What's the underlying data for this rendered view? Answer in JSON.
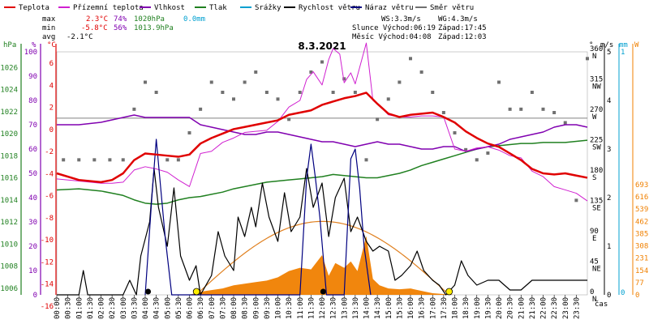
{
  "legend": [
    {
      "label": "Teplota",
      "color": "#e00000"
    },
    {
      "label": "Přízemní teplota",
      "color": "#d020d0"
    },
    {
      "label": "Vlhkost",
      "color": "#8000b0"
    },
    {
      "label": "Tlak",
      "color": "#208020"
    },
    {
      "label": "Srážky",
      "color": "#00a0d0"
    },
    {
      "label": "Rychlost větru",
      "color": "#000000"
    },
    {
      "label": "Náraz větru",
      "color": "#000080"
    },
    {
      "label": "Směr větru",
      "color": "#707070"
    }
  ],
  "stats": {
    "max_label": "max",
    "max_temp": "2.3°C",
    "max_hum": "74%",
    "max_press": "1020hPa",
    "max_rain": "0.0mm",
    "min_label": "min",
    "min_temp": "-5.8°C",
    "min_hum": "56%",
    "min_press": "1013.9hPa",
    "avg_label": "avg",
    "avg_temp": "-2.1°C"
  },
  "wind_info": {
    "ws": "WS:3.3m/s",
    "wg": "WG:4.3m/s",
    "sun": "Slunce Východ:06:19",
    "sunset": "Západ:17:45",
    "moon": "Měsíc  Východ:04:08",
    "moonset": "Západ:12:03"
  },
  "title": "8.3.2021",
  "axis_units": {
    "hpa": "hPa",
    "pct": "%",
    "degc": "°C",
    "deg": "°",
    "ms": "m/s",
    "mm": "mm",
    "w": "W",
    "cas": "čas"
  },
  "colors": {
    "temp": "#e00000",
    "ground": "#d020d0",
    "hum": "#8000b0",
    "press": "#208020",
    "rain": "#00a0d0",
    "wind": "#000000",
    "gust": "#000080",
    "dir": "#707070",
    "solar": "#f08000",
    "sun_curve": "#e08020"
  },
  "chart_data": {
    "type": "line",
    "title": "8.3.2021",
    "x_tick_labels": [
      "00:00",
      "00:30",
      "01:00",
      "01:30",
      "02:00",
      "02:30",
      "03:00",
      "03:30",
      "04:00",
      "04:30",
      "05:00",
      "05:30",
      "06:00",
      "06:30",
      "07:00",
      "07:30",
      "08:00",
      "08:30",
      "09:00",
      "09:30",
      "10:00",
      "10:30",
      "11:00",
      "11:30",
      "12:00",
      "12:30",
      "13:00",
      "13:30",
      "14:00",
      "14:30",
      "15:00",
      "15:30",
      "16:00",
      "16:30",
      "17:00",
      "17:30",
      "18:00",
      "18:30",
      "19:00",
      "19:30",
      "20:00",
      "20:30",
      "21:00",
      "21:30",
      "22:00",
      "22:30",
      "23:00",
      "23:30"
    ],
    "axes": {
      "hpa": {
        "ticks": [
          "1026",
          "1024",
          "1022",
          "1020",
          "1018",
          "1016",
          "1014",
          "1012",
          "1010",
          "1008",
          "1006"
        ],
        "range": [
          1006,
          1028
        ]
      },
      "pct": {
        "ticks": [
          "100",
          "90",
          "80",
          "70",
          "60",
          "50",
          "40",
          "30",
          "20",
          "10",
          "0"
        ],
        "range": [
          0,
          100
        ]
      },
      "degc": {
        "ticks": [
          "6",
          "4",
          "2",
          "0",
          "-2",
          "-4",
          "-6",
          "-8",
          "-10",
          "-12",
          "-14",
          "-16"
        ],
        "range": [
          -16,
          6
        ]
      },
      "dir": {
        "ticks": [
          "360 N",
          "315 NW",
          "270 W",
          "225 SW",
          "180 S",
          "135 SE",
          "90 E",
          "45 NE",
          "0 N"
        ],
        "range": [
          0,
          360
        ]
      },
      "ms": {
        "ticks": [
          "5",
          "4",
          "3",
          "2",
          "1",
          "0"
        ],
        "range": [
          0,
          5
        ]
      },
      "mm": {
        "ticks": [
          "1",
          "0"
        ],
        "range": [
          0,
          1
        ]
      },
      "w": {
        "ticks": [
          "693",
          "616",
          "539",
          "462",
          "385",
          "308",
          "231",
          "154",
          "77",
          "0"
        ],
        "range": [
          0,
          693
        ]
      }
    },
    "series": [
      {
        "name": "Teplota",
        "axis": "degc",
        "x": [
          0,
          1,
          2,
          2.5,
          3,
          3.5,
          4,
          4.5,
          5,
          5.5,
          6,
          6.5,
          7,
          7.5,
          8,
          8.5,
          9,
          9.5,
          10,
          10.5,
          11,
          11.5,
          12,
          12.5,
          13,
          13.5,
          14,
          14.5,
          15,
          15.5,
          16,
          16.5,
          17,
          17.5,
          18,
          18.5,
          19,
          19.5,
          20,
          20.5,
          21,
          21.5,
          22,
          22.5,
          23,
          23.5,
          24
        ],
        "values": [
          -5,
          -5.6,
          -5.8,
          -5.6,
          -5,
          -3.8,
          -3.2,
          -3.3,
          -3.4,
          -3.5,
          -3.3,
          -2.3,
          -1.8,
          -1.4,
          -1,
          -0.8,
          -0.6,
          -0.4,
          -0.2,
          0.3,
          0.5,
          0.7,
          1.2,
          1.5,
          1.8,
          2,
          2.3,
          1.3,
          0.4,
          0.1,
          0.3,
          0.4,
          0.5,
          0.1,
          -0.4,
          -1.2,
          -1.8,
          -2.3,
          -2.6,
          -3.2,
          -3.8,
          -4.6,
          -5,
          -5.1,
          -5,
          -5.2,
          -5.4
        ]
      },
      {
        "name": "Přízemní teplota",
        "axis": "degc",
        "x": [
          0,
          1,
          2,
          2.5,
          3,
          3.5,
          4,
          4.5,
          5,
          5.5,
          6,
          6.5,
          7,
          7.5,
          8,
          8.5,
          9,
          9.5,
          10,
          10.5,
          11,
          11.3,
          11.6,
          12,
          12.3,
          12.5,
          12.8,
          13,
          13.3,
          13.5,
          14,
          14.3,
          14.6,
          15,
          15.5,
          16,
          16.5,
          17,
          17.5,
          18,
          18.5,
          19,
          19.5,
          20,
          20.5,
          21,
          21.5,
          22,
          22.5,
          23,
          23.5,
          24
        ],
        "values": [
          -5.5,
          -5.7,
          -5.9,
          -5.9,
          -5.8,
          -4.7,
          -4.4,
          -4.6,
          -4.9,
          -5.6,
          -6.2,
          -3.2,
          -3,
          -2.2,
          -1.8,
          -1.3,
          -1.2,
          -1.1,
          -0.3,
          1,
          1.6,
          3.5,
          4.2,
          3,
          5.3,
          6.3,
          5.8,
          3.2,
          4.1,
          3.1,
          6.8,
          1.6,
          1.1,
          0.3,
          0.1,
          0.1,
          0.2,
          0.2,
          0.1,
          -2.8,
          -3,
          -2.7,
          -2.6,
          -2.9,
          -3.4,
          -3.6,
          -4.8,
          -5.3,
          -6.2,
          -6.5,
          -6.8,
          -7.5
        ]
      },
      {
        "name": "Vlhkost",
        "axis": "pct",
        "x": [
          0,
          1,
          2,
          2.5,
          3,
          3.5,
          4,
          4.5,
          5,
          5.5,
          6,
          6.5,
          7,
          7.5,
          8,
          8.5,
          9,
          9.5,
          10,
          10.5,
          11,
          11.5,
          12,
          12.5,
          13,
          13.5,
          14,
          14.5,
          15,
          15.5,
          16,
          16.5,
          17,
          17.5,
          18,
          18.5,
          19,
          19.5,
          20,
          20.5,
          21,
          21.5,
          22,
          22.5,
          23,
          23.5,
          24
        ],
        "values": [
          70,
          70,
          71,
          72,
          73,
          74,
          73,
          73,
          73,
          73,
          73,
          70,
          69,
          68,
          67,
          66,
          66,
          67,
          67,
          66,
          65,
          64,
          63,
          63,
          62,
          61,
          62,
          63,
          62,
          62,
          61,
          60,
          60,
          61,
          61,
          59,
          60,
          61,
          62,
          64,
          65,
          66,
          67,
          69,
          70,
          70,
          69
        ]
      },
      {
        "name": "Tlak",
        "axis": "hpa",
        "x": [
          0,
          1,
          2,
          2.5,
          3,
          3.5,
          4,
          4.5,
          5,
          5.5,
          6,
          6.5,
          7,
          7.5,
          8,
          8.5,
          9,
          9.5,
          10,
          10.5,
          11,
          11.5,
          12,
          12.5,
          13,
          13.5,
          14,
          14.5,
          15,
          15.5,
          16,
          16.5,
          17,
          17.5,
          18,
          18.5,
          19,
          19.5,
          20,
          20.5,
          21,
          21.5,
          22,
          22.5,
          23,
          23.5,
          24
        ],
        "values": [
          1015.5,
          1015.6,
          1015.4,
          1015.2,
          1015.0,
          1014.6,
          1014.3,
          1014.2,
          1014.3,
          1014.6,
          1014.8,
          1014.9,
          1015.1,
          1015.3,
          1015.6,
          1015.8,
          1016.0,
          1016.2,
          1016.3,
          1016.4,
          1016.5,
          1016.6,
          1016.7,
          1016.9,
          1016.8,
          1016.7,
          1016.6,
          1016.6,
          1016.8,
          1017.0,
          1017.3,
          1017.7,
          1018.0,
          1018.3,
          1018.6,
          1018.9,
          1019.2,
          1019.4,
          1019.5,
          1019.6,
          1019.7,
          1019.7,
          1019.8,
          1019.8,
          1019.8,
          1019.9,
          1020.0
        ]
      },
      {
        "name": "Rychlost větru",
        "axis": "ms",
        "x": [
          0,
          0.5,
          1,
          1.2,
          1.4,
          1.6,
          2,
          2.5,
          3,
          3.3,
          3.6,
          3.8,
          4.2,
          4.4,
          4.6,
          5,
          5.3,
          5.6,
          6,
          6.3,
          6.5,
          7,
          7.3,
          7.6,
          8,
          8.2,
          8.5,
          8.8,
          9,
          9.3,
          9.6,
          10,
          10.3,
          10.6,
          11,
          11.3,
          11.6,
          12,
          12.3,
          12.6,
          13,
          13.3,
          13.6,
          14,
          14.3,
          14.6,
          15,
          15.3,
          15.6,
          16,
          16.3,
          16.6,
          17,
          17.3,
          17.6,
          18,
          18.3,
          18.6,
          19,
          19.5,
          20,
          20.5,
          21,
          21.5,
          22,
          22.5,
          23,
          23.5,
          24
        ],
        "values": [
          0,
          0,
          0,
          0.5,
          0,
          0,
          0,
          0,
          0,
          0.3,
          0,
          0.8,
          1.5,
          2.6,
          1.8,
          1.0,
          2.2,
          0.8,
          0.3,
          0.6,
          0,
          0.4,
          1.3,
          0.8,
          0.5,
          1.6,
          1.2,
          1.8,
          1.4,
          2.3,
          1.6,
          1.1,
          2.1,
          1.3,
          1.6,
          2.6,
          1.8,
          2.3,
          1.2,
          2.0,
          2.4,
          1.3,
          1.6,
          1.1,
          0.9,
          1.0,
          0.9,
          0.3,
          0.4,
          0.6,
          0.9,
          0.5,
          0.3,
          0.2,
          0,
          0.2,
          0.7,
          0.4,
          0.2,
          0.3,
          0.3,
          0.1,
          0.1,
          0.3,
          0.3,
          0.3,
          0.3,
          0.3,
          0.3
        ]
      },
      {
        "name": "Náraz větru",
        "axis": "ms",
        "x": [
          4,
          4.3,
          4.5,
          4.7,
          4.9,
          5.2,
          11,
          11.3,
          11.5,
          11.7,
          11.9,
          12.2,
          13,
          13.3,
          13.5,
          13.7,
          13.9,
          14.2
        ],
        "values": [
          0,
          2.0,
          3.2,
          2.2,
          1.2,
          0,
          0,
          2.4,
          3.1,
          2.4,
          1.6,
          0,
          0,
          2.8,
          3.0,
          2.2,
          1.0,
          0
        ]
      },
      {
        "name": "Solar",
        "axis": "w",
        "x": [
          6,
          6.5,
          7,
          7.5,
          8,
          8.5,
          9,
          9.5,
          10,
          10.5,
          11,
          11.5,
          12,
          12.3,
          12.6,
          13,
          13.3,
          13.6,
          14,
          14.3,
          14.6,
          15,
          15.5,
          16,
          16.5,
          17,
          17.5,
          18
        ],
        "values": [
          0,
          20,
          30,
          40,
          60,
          70,
          80,
          90,
          110,
          150,
          170,
          160,
          250,
          120,
          200,
          170,
          210,
          150,
          370,
          100,
          60,
          40,
          35,
          40,
          25,
          10,
          5,
          0
        ]
      }
    ],
    "wind_direction_points": [
      {
        "x": 0.3,
        "y": 200
      },
      {
        "x": 1.0,
        "y": 200
      },
      {
        "x": 1.7,
        "y": 200
      },
      {
        "x": 2.4,
        "y": 200
      },
      {
        "x": 3.0,
        "y": 200
      },
      {
        "x": 3.5,
        "y": 275
      },
      {
        "x": 4.0,
        "y": 315
      },
      {
        "x": 4.5,
        "y": 300
      },
      {
        "x": 5.0,
        "y": 200
      },
      {
        "x": 5.5,
        "y": 200
      },
      {
        "x": 6.0,
        "y": 240
      },
      {
        "x": 6.5,
        "y": 275
      },
      {
        "x": 7.0,
        "y": 315
      },
      {
        "x": 7.5,
        "y": 300
      },
      {
        "x": 8.0,
        "y": 290
      },
      {
        "x": 8.5,
        "y": 315
      },
      {
        "x": 9.0,
        "y": 330
      },
      {
        "x": 9.5,
        "y": 300
      },
      {
        "x": 10.0,
        "y": 290
      },
      {
        "x": 10.5,
        "y": 260
      },
      {
        "x": 11.0,
        "y": 300
      },
      {
        "x": 11.5,
        "y": 330
      },
      {
        "x": 12.0,
        "y": 345
      },
      {
        "x": 12.5,
        "y": 300
      },
      {
        "x": 13.0,
        "y": 320
      },
      {
        "x": 13.5,
        "y": 300
      },
      {
        "x": 14.0,
        "y": 200
      },
      {
        "x": 14.5,
        "y": 260
      },
      {
        "x": 15.0,
        "y": 290
      },
      {
        "x": 15.5,
        "y": 315
      },
      {
        "x": 16.0,
        "y": 350
      },
      {
        "x": 16.5,
        "y": 330
      },
      {
        "x": 17.0,
        "y": 300
      },
      {
        "x": 17.5,
        "y": 270
      },
      {
        "x": 18.0,
        "y": 240
      },
      {
        "x": 18.5,
        "y": 215
      },
      {
        "x": 19.0,
        "y": 200
      },
      {
        "x": 19.5,
        "y": 210
      },
      {
        "x": 20.0,
        "y": 315
      },
      {
        "x": 20.5,
        "y": 275
      },
      {
        "x": 21.0,
        "y": 275
      },
      {
        "x": 21.5,
        "y": 300
      },
      {
        "x": 22.0,
        "y": 275
      },
      {
        "x": 22.5,
        "y": 270
      },
      {
        "x": 23.0,
        "y": 255
      },
      {
        "x": 23.5,
        "y": 140
      },
      {
        "x": 24.0,
        "y": 350
      }
    ],
    "sun_curve": {
      "rise": 6.3,
      "set": 17.75,
      "peak_w": 462
    },
    "markers": [
      {
        "type": "moonrise",
        "x": 4.13
      },
      {
        "type": "sunrise",
        "x": 6.32
      },
      {
        "type": "moonset",
        "x": 12.05
      },
      {
        "type": "sunset",
        "x": 17.75
      }
    ]
  }
}
